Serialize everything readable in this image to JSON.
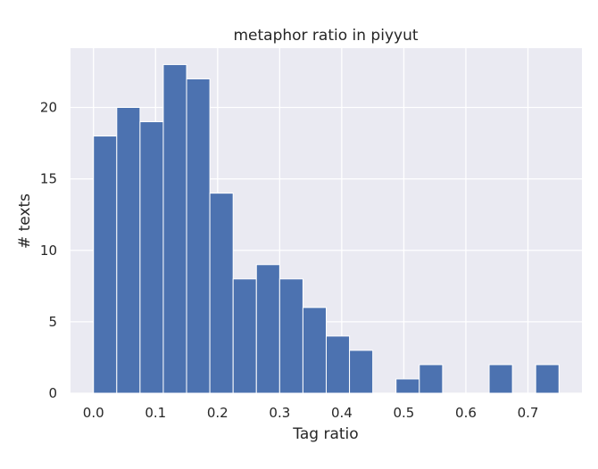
{
  "chart_data": {
    "type": "bar",
    "title": "metaphor ratio in piyyut",
    "xlabel": "Tag ratio",
    "ylabel": "# texts",
    "xlim": [
      -0.037,
      0.787
    ],
    "ylim": [
      0,
      24.15
    ],
    "x_ticks": [
      0.0,
      0.1,
      0.2,
      0.3,
      0.4,
      0.5,
      0.6,
      0.7
    ],
    "x_tick_labels": [
      "0.0",
      "0.1",
      "0.2",
      "0.3",
      "0.4",
      "0.5",
      "0.6",
      "0.7"
    ],
    "y_ticks": [
      0,
      5,
      10,
      15,
      20
    ],
    "y_tick_labels": [
      "0",
      "5",
      "10",
      "15",
      "20"
    ],
    "grid": true,
    "bar_color": "#4c72b0",
    "background_color": "#eaeaf2",
    "grid_color": "#ffffff",
    "bins": [
      {
        "x0": 0.0,
        "x1": 0.0375,
        "count": 18
      },
      {
        "x0": 0.0375,
        "x1": 0.075,
        "count": 20
      },
      {
        "x0": 0.075,
        "x1": 0.1125,
        "count": 19
      },
      {
        "x0": 0.1125,
        "x1": 0.15,
        "count": 23
      },
      {
        "x0": 0.15,
        "x1": 0.1875,
        "count": 22
      },
      {
        "x0": 0.1875,
        "x1": 0.225,
        "count": 14
      },
      {
        "x0": 0.225,
        "x1": 0.2625,
        "count": 8
      },
      {
        "x0": 0.2625,
        "x1": 0.3,
        "count": 9
      },
      {
        "x0": 0.3,
        "x1": 0.3375,
        "count": 8
      },
      {
        "x0": 0.3375,
        "x1": 0.375,
        "count": 6
      },
      {
        "x0": 0.375,
        "x1": 0.4125,
        "count": 4
      },
      {
        "x0": 0.4125,
        "x1": 0.45,
        "count": 3
      },
      {
        "x0": 0.45,
        "x1": 0.4875,
        "count": 0
      },
      {
        "x0": 0.4875,
        "x1": 0.525,
        "count": 1
      },
      {
        "x0": 0.525,
        "x1": 0.5625,
        "count": 2
      },
      {
        "x0": 0.5625,
        "x1": 0.6,
        "count": 0
      },
      {
        "x0": 0.6,
        "x1": 0.6375,
        "count": 0
      },
      {
        "x0": 0.6375,
        "x1": 0.675,
        "count": 2
      },
      {
        "x0": 0.675,
        "x1": 0.7125,
        "count": 0
      },
      {
        "x0": 0.7125,
        "x1": 0.75,
        "count": 2
      }
    ]
  }
}
